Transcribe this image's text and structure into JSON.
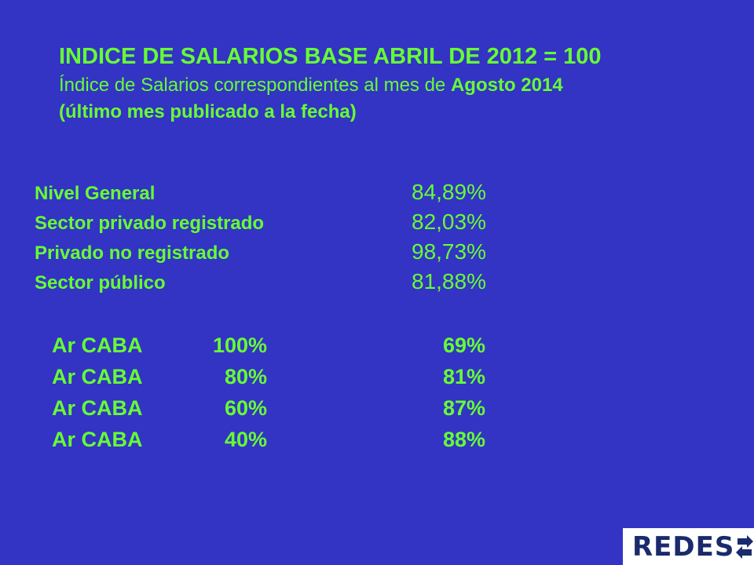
{
  "header": {
    "title": "INDICE DE SALARIOS BASE ABRIL DE 2012 = 100",
    "subtitle_prefix": "Índice de Salarios correspondientes al mes de ",
    "subtitle_bold": "Agosto 2014",
    "subtitle_line2": "(último mes publicado a la fecha)"
  },
  "indices": [
    {
      "label": "Nivel General",
      "value": "84,89%"
    },
    {
      "label": "Sector privado registrado",
      "value": "82,03%"
    },
    {
      "label": "Privado no registrado",
      "value": "98,73%"
    },
    {
      "label": "Sector público",
      "value": "81,88%"
    }
  ],
  "caba": [
    {
      "name": "Ar CABA",
      "pct": "100%",
      "value": "69%"
    },
    {
      "name": "Ar CABA",
      "pct": "80%",
      "value": "81%"
    },
    {
      "name": "Ar CABA",
      "pct": "60%",
      "value": "87%"
    },
    {
      "name": "Ar CABA",
      "pct": "40%",
      "value": "88%"
    }
  ],
  "logo": {
    "text": "REDES",
    "text_color": "#1a2a6c"
  },
  "colors": {
    "background": "#3333c4",
    "text": "#66ff33"
  }
}
